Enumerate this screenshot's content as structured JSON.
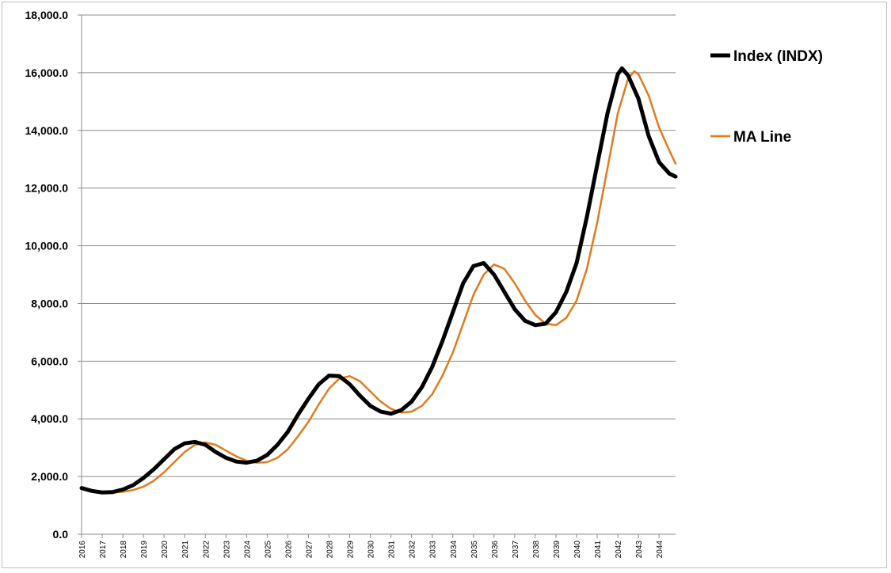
{
  "chart_data": {
    "type": "line",
    "title": "",
    "xlabel": "",
    "ylabel": "",
    "xlim": [
      2016,
      2044.8
    ],
    "ylim": [
      0,
      18000
    ],
    "y_ticks": [
      0,
      2000,
      4000,
      6000,
      8000,
      10000,
      12000,
      14000,
      16000,
      18000
    ],
    "y_tick_labels": [
      "0.0",
      "2,000.0",
      "4,000.0",
      "6,000.0",
      "8,000.0",
      "10,000.0",
      "12,000.0",
      "14,000.0",
      "16,000.0",
      "18,000.0"
    ],
    "x_ticks": [
      "2016",
      "2017",
      "2018",
      "2019",
      "2020",
      "2021",
      "2022",
      "2023",
      "2024",
      "2025",
      "2026",
      "2027",
      "2028",
      "2029",
      "2030",
      "2031",
      "2032",
      "2033",
      "2034",
      "2035",
      "2036",
      "2037",
      "2038",
      "2039",
      "2040",
      "2041",
      "2042",
      "2043",
      "2044"
    ],
    "grid": true,
    "legend_position": "right",
    "series": [
      {
        "name": "Index (INDX)",
        "color": "#000000",
        "x": [
          2016.0,
          2016.5,
          2017.0,
          2017.5,
          2018.0,
          2018.5,
          2019.0,
          2019.5,
          2020.0,
          2020.5,
          2021.0,
          2021.5,
          2022.0,
          2022.5,
          2023.0,
          2023.5,
          2024.0,
          2024.5,
          2025.0,
          2025.5,
          2026.0,
          2026.5,
          2027.0,
          2027.5,
          2028.0,
          2028.5,
          2029.0,
          2029.5,
          2030.0,
          2030.5,
          2031.0,
          2031.5,
          2032.0,
          2032.5,
          2033.0,
          2033.5,
          2034.0,
          2034.5,
          2035.0,
          2035.5,
          2036.0,
          2036.5,
          2037.0,
          2037.5,
          2038.0,
          2038.5,
          2039.0,
          2039.5,
          2040.0,
          2040.5,
          2041.0,
          2041.5,
          2042.0,
          2042.2,
          2042.5,
          2043.0,
          2043.5,
          2044.0,
          2044.5,
          2044.8
        ],
        "values": [
          1600,
          1500,
          1450,
          1460,
          1550,
          1700,
          1950,
          2250,
          2600,
          2950,
          3150,
          3200,
          3100,
          2850,
          2650,
          2520,
          2480,
          2550,
          2750,
          3100,
          3550,
          4150,
          4700,
          5200,
          5500,
          5480,
          5200,
          4800,
          4450,
          4250,
          4180,
          4300,
          4600,
          5100,
          5800,
          6700,
          7700,
          8700,
          9300,
          9400,
          9000,
          8400,
          7800,
          7400,
          7250,
          7300,
          7700,
          8400,
          9400,
          11000,
          12800,
          14600,
          15950,
          16150,
          15900,
          15100,
          13800,
          12900,
          12500,
          12400
        ]
      },
      {
        "name": "MA Line",
        "color": "#e07b20",
        "x": [
          2017.0,
          2017.5,
          2018.0,
          2018.5,
          2019.0,
          2019.5,
          2020.0,
          2020.5,
          2021.0,
          2021.5,
          2022.0,
          2022.5,
          2023.0,
          2023.5,
          2024.0,
          2024.5,
          2025.0,
          2025.5,
          2026.0,
          2026.5,
          2027.0,
          2027.5,
          2028.0,
          2028.5,
          2029.0,
          2029.5,
          2030.0,
          2030.5,
          2031.0,
          2031.5,
          2032.0,
          2032.5,
          2033.0,
          2033.5,
          2034.0,
          2034.5,
          2035.0,
          2035.5,
          2036.0,
          2036.5,
          2037.0,
          2037.5,
          2038.0,
          2038.5,
          2039.0,
          2039.5,
          2040.0,
          2040.5,
          2041.0,
          2041.5,
          2042.0,
          2042.5,
          2042.8,
          2043.0,
          2043.5,
          2044.0,
          2044.5,
          2044.8
        ],
        "values": [
          1480,
          1450,
          1470,
          1530,
          1650,
          1850,
          2150,
          2500,
          2850,
          3100,
          3180,
          3100,
          2900,
          2700,
          2550,
          2480,
          2500,
          2650,
          2950,
          3400,
          3900,
          4500,
          5050,
          5400,
          5480,
          5300,
          4950,
          4600,
          4350,
          4220,
          4250,
          4450,
          4850,
          5500,
          6300,
          7300,
          8300,
          9000,
          9350,
          9200,
          8700,
          8100,
          7600,
          7300,
          7250,
          7500,
          8100,
          9200,
          10800,
          12700,
          14600,
          15800,
          16050,
          15950,
          15200,
          14100,
          13300,
          12850
        ]
      }
    ]
  }
}
